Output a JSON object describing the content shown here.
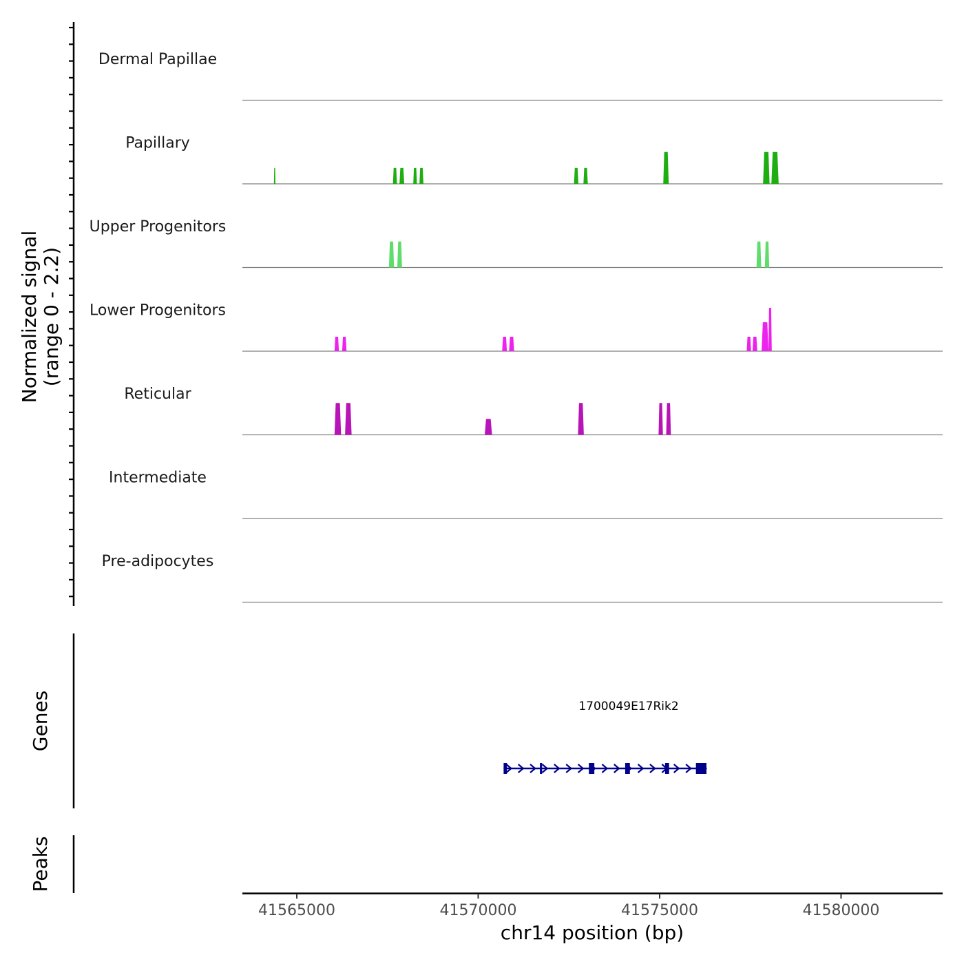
{
  "chart_data": {
    "type": "area",
    "title": "",
    "ylabel_line1": "Normalized signal",
    "ylabel_line2": "(range 0 - 2.2)",
    "xlabel": "chr14 position (bp)",
    "xlim": [
      41563500,
      41582800
    ],
    "ylim": [
      0,
      2.2
    ],
    "xticks": [
      41565000,
      41570000,
      41575000,
      41580000
    ],
    "xtick_labels": [
      "41565000",
      "41570000",
      "41575000",
      "41580000"
    ],
    "tracks": [
      {
        "name": "Dermal Papillae",
        "color": "#00008b",
        "peaks": []
      },
      {
        "name": "Papillary",
        "color": "#1fae12",
        "peaks": [
          {
            "start": 41564370,
            "end": 41564410,
            "height": 1.1
          },
          {
            "start": 41567650,
            "end": 41567760,
            "height": 1.1
          },
          {
            "start": 41567830,
            "end": 41567960,
            "height": 1.1
          },
          {
            "start": 41568210,
            "end": 41568310,
            "height": 1.1
          },
          {
            "start": 41568380,
            "end": 41568490,
            "height": 1.1
          },
          {
            "start": 41572640,
            "end": 41572760,
            "height": 1.1
          },
          {
            "start": 41572900,
            "end": 41573020,
            "height": 1.1
          },
          {
            "start": 41575100,
            "end": 41575250,
            "height": 2.2
          },
          {
            "start": 41577850,
            "end": 41578030,
            "height": 2.2
          },
          {
            "start": 41578080,
            "end": 41578280,
            "height": 2.2
          }
        ]
      },
      {
        "name": "Upper Progenitors",
        "color": "#5fdd6b",
        "peaks": [
          {
            "start": 41567540,
            "end": 41567680,
            "height": 1.8
          },
          {
            "start": 41567770,
            "end": 41567900,
            "height": 1.8
          },
          {
            "start": 41577670,
            "end": 41577800,
            "height": 1.8
          },
          {
            "start": 41577900,
            "end": 41578020,
            "height": 1.8
          }
        ]
      },
      {
        "name": "Lower Progenitors",
        "color": "#ee22ee",
        "peaks": [
          {
            "start": 41566040,
            "end": 41566160,
            "height": 1.0
          },
          {
            "start": 41566250,
            "end": 41566370,
            "height": 1.0
          },
          {
            "start": 41570660,
            "end": 41570790,
            "height": 1.0
          },
          {
            "start": 41570850,
            "end": 41570990,
            "height": 1.0
          },
          {
            "start": 41577400,
            "end": 41577520,
            "height": 1.0
          },
          {
            "start": 41577560,
            "end": 41577690,
            "height": 1.0
          },
          {
            "start": 41577810,
            "end": 41578000,
            "height": 2.0
          },
          {
            "start": 41578000,
            "end": 41578090,
            "height": 3.0
          }
        ]
      },
      {
        "name": "Reticular",
        "color": "#b814b8",
        "peaks": [
          {
            "start": 41566040,
            "end": 41566220,
            "height": 2.2
          },
          {
            "start": 41566330,
            "end": 41566510,
            "height": 2.2
          },
          {
            "start": 41570180,
            "end": 41570380,
            "height": 1.1
          },
          {
            "start": 41572750,
            "end": 41572910,
            "height": 2.2
          },
          {
            "start": 41574970,
            "end": 41575090,
            "height": 2.2
          },
          {
            "start": 41575180,
            "end": 41575310,
            "height": 2.2
          }
        ]
      },
      {
        "name": "Intermediate",
        "color": "#00008b",
        "peaks": []
      },
      {
        "name": "Pre-adipocytes",
        "color": "#00008b",
        "peaks": []
      }
    ],
    "gene_track": {
      "label": "Genes",
      "gene_name": "1700049E17Rik2",
      "strand": "+",
      "color": "#00008b",
      "start": 41570700,
      "end": 41576300,
      "exons": [
        {
          "start": 41570700,
          "end": 41570790
        },
        {
          "start": 41571700,
          "end": 41571760
        },
        {
          "start": 41573050,
          "end": 41573200
        },
        {
          "start": 41574050,
          "end": 41574180
        },
        {
          "start": 41575150,
          "end": 41575260
        },
        {
          "start": 41576000,
          "end": 41576290
        }
      ]
    },
    "peaks_track": {
      "label": "Peaks",
      "peaks": []
    }
  }
}
